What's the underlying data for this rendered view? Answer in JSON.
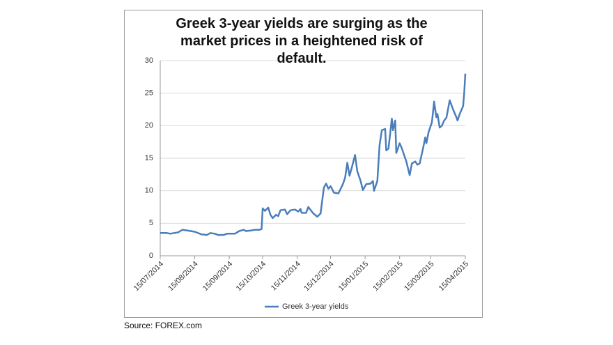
{
  "chart_data": {
    "type": "line",
    "title": "Greek 3-year yields are surging as the market prices in a heightened risk of default.",
    "source": "Source: FOREX.com",
    "x": [
      "15/07/2014",
      "21/07/2014",
      "24/07/2014",
      "31/07/2014",
      "04/08/2014",
      "08/08/2014",
      "15/08/2014",
      "21/08/2014",
      "26/08/2014",
      "29/08/2014",
      "02/09/2014",
      "05/09/2014",
      "10/09/2014",
      "13/09/2014",
      "20/09/2014",
      "24/09/2014",
      "28/09/2014",
      "30/09/2014",
      "05/10/2014",
      "08/10/2014",
      "12/10/2014",
      "14/10/2014",
      "15/10/2014",
      "17/10/2014",
      "20/10/2014",
      "22/10/2014",
      "24/10/2014",
      "27/10/2014",
      "29/10/2014",
      "31/10/2014",
      "04/11/2014",
      "06/11/2014",
      "09/11/2014",
      "13/11/2014",
      "16/11/2014",
      "18/11/2014",
      "19/11/2014",
      "23/11/2014",
      "25/11/2014",
      "29/11/2014",
      "03/12/2014",
      "06/12/2014",
      "09/12/2014",
      "11/12/2014",
      "13/12/2014",
      "15/12/2014",
      "18/12/2014",
      "22/12/2014",
      "26/12/2014",
      "28/12/2014",
      "30/12/2014",
      "01/01/2015",
      "03/01/2015",
      "06/01/2015",
      "08/01/2015",
      "11/01/2015",
      "13/01/2015",
      "16/01/2015",
      "20/01/2015",
      "22/01/2015",
      "23/01/2015",
      "26/01/2015",
      "28/01/2015",
      "30/01/2015",
      "02/02/2015",
      "03/02/2015",
      "05/02/2015",
      "08/02/2015",
      "09/02/2015",
      "11/02/2015",
      "12/02/2015",
      "15/02/2015",
      "17/02/2015",
      "21/02/2015",
      "24/02/2015",
      "26/02/2015",
      "01/03/2015",
      "03/03/2015",
      "05/03/2015",
      "08/03/2015",
      "10/03/2015",
      "11/03/2015",
      "13/03/2015",
      "16/03/2015",
      "18/03/2015",
      "20/03/2015",
      "21/03/2015",
      "23/03/2015",
      "25/03/2015",
      "27/03/2015",
      "29/03/2015",
      "31/03/2015",
      "01/04/2015",
      "04/04/2015",
      "07/04/2015",
      "08/04/2015",
      "10/04/2015",
      "13/04/2015",
      "14/04/2015",
      "15/04/2015"
    ],
    "series": [
      {
        "name": "Greek 3-year yields",
        "color": "#4a7ebb",
        "values": [
          3.5,
          3.5,
          3.4,
          3.6,
          4.0,
          3.9,
          3.7,
          3.3,
          3.2,
          3.5,
          3.4,
          3.2,
          3.2,
          3.4,
          3.4,
          3.8,
          4.0,
          3.8,
          3.9,
          4.0,
          4.0,
          4.1,
          7.3,
          6.9,
          7.4,
          6.3,
          5.8,
          6.3,
          6.1,
          7.0,
          7.1,
          6.4,
          7.0,
          7.1,
          6.8,
          7.2,
          6.6,
          6.6,
          7.5,
          6.6,
          6.0,
          6.5,
          10.5,
          11.1,
          10.3,
          10.7,
          9.7,
          9.6,
          11.0,
          12.0,
          14.3,
          12.3,
          13.5,
          15.5,
          13.0,
          11.5,
          10.1,
          11.0,
          11.1,
          11.5,
          10.0,
          11.5,
          17.0,
          19.3,
          19.5,
          16.2,
          16.5,
          21.1,
          19.3,
          20.8,
          15.8,
          17.3,
          16.5,
          14.5,
          12.4,
          14.2,
          14.5,
          14.0,
          14.2,
          16.5,
          18.2,
          17.3,
          19.0,
          20.5,
          23.7,
          21.3,
          21.8,
          19.7,
          20.0,
          20.8,
          21.2,
          23.0,
          23.9,
          22.5,
          21.3,
          20.8,
          21.8,
          23.0,
          25.0,
          28.0
        ]
      }
    ],
    "xlim": [
      "15/07/2014",
      "15/04/2015"
    ],
    "xticks": [
      "15/07/2014",
      "15/08/2014",
      "15/09/2014",
      "15/10/2014",
      "15/11/2014",
      "15/12/2014",
      "15/01/2015",
      "15/02/2015",
      "15/03/2015",
      "15/04/2015"
    ],
    "ylim": [
      0,
      30
    ],
    "yticks": [
      0,
      5,
      10,
      15,
      20,
      25,
      30
    ],
    "grid": true,
    "legend": "bottom"
  }
}
